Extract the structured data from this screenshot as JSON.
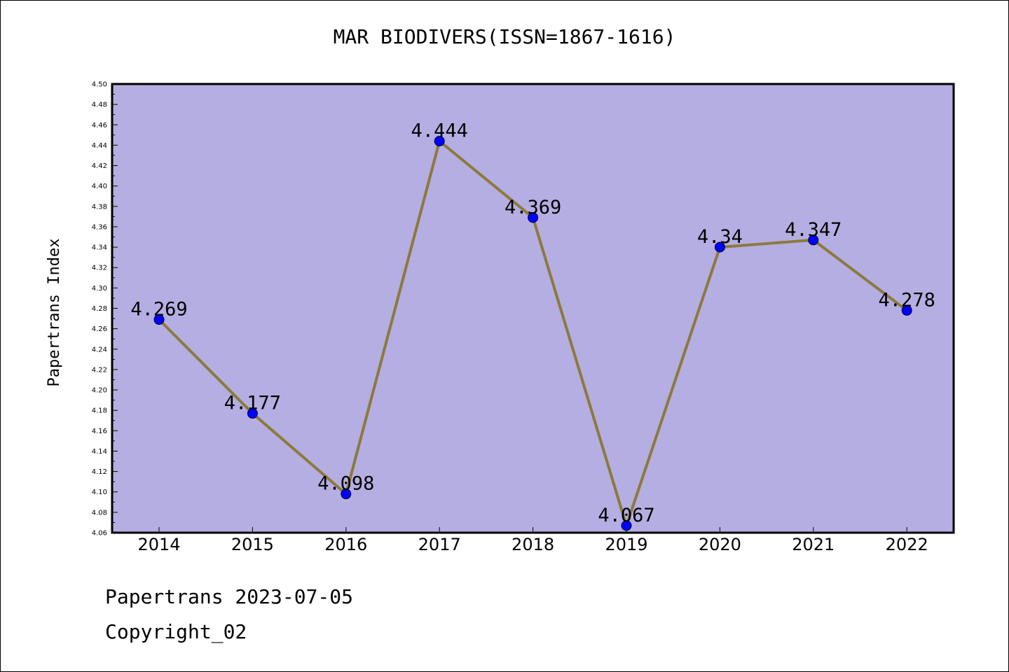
{
  "title": "MAR BIODIVERS(ISSN=1867-1616)",
  "footer": {
    "date_line": "Papertrans 2023-07-05",
    "copyright_line": "Copyright_02"
  },
  "colors": {
    "plot_background": "#b5aee2",
    "line": "#8b7a3c",
    "marker": "#0000ff",
    "axis": "#000000"
  },
  "chart_data": {
    "type": "line",
    "title": "MAR BIODIVERS(ISSN=1867-1616)",
    "xlabel": "",
    "ylabel": "Papertrans Index",
    "categories": [
      "2014",
      "2015",
      "2016",
      "2017",
      "2018",
      "2019",
      "2020",
      "2021",
      "2022"
    ],
    "values": [
      4.269,
      4.177,
      4.098,
      4.444,
      4.369,
      4.067,
      4.34,
      4.347,
      4.278
    ],
    "data_labels": [
      "4.269",
      "4.177",
      "4.098",
      "4.444",
      "4.369",
      "4.067",
      "4.34",
      "4.347",
      "4.278"
    ],
    "ylim": [
      4.06,
      4.5
    ],
    "y_ticks": [
      "4.06",
      "4.08",
      "4.10",
      "4.12",
      "4.14",
      "4.16",
      "4.18",
      "4.20",
      "4.22",
      "4.24",
      "4.26",
      "4.28",
      "4.30",
      "4.32",
      "4.34",
      "4.36",
      "4.38",
      "4.40",
      "4.42",
      "4.44",
      "4.46",
      "4.48",
      "4.50"
    ],
    "grid": false,
    "legend": "none"
  }
}
